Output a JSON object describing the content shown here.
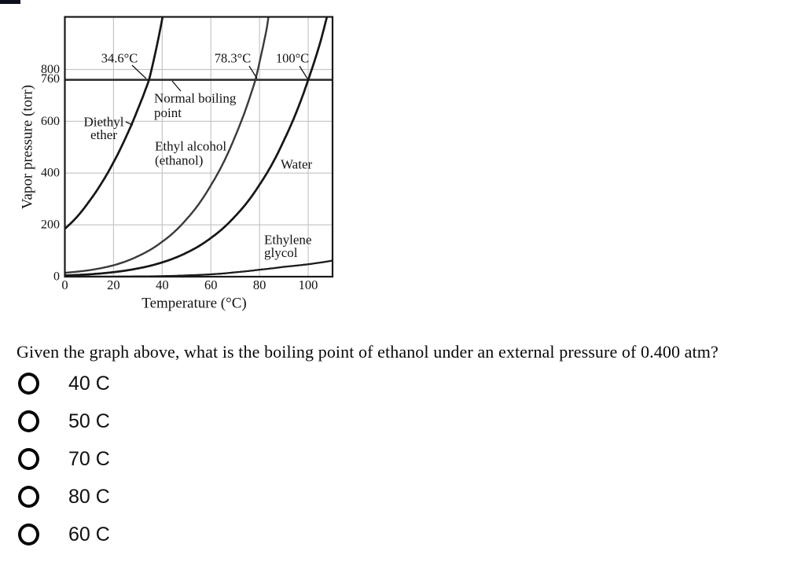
{
  "accent_bar": {
    "color": "#0b0e1c"
  },
  "question": {
    "text": "Given the graph above, what is the boiling point of ethanol under an external pressure of 0.400 atm?"
  },
  "options": [
    {
      "label": "40 C"
    },
    {
      "label": "50 C"
    },
    {
      "label": "70 C"
    },
    {
      "label": "80 C"
    },
    {
      "label": "60 C"
    }
  ],
  "chart_data": {
    "type": "line",
    "xlabel": "Temperature (°C)",
    "ylabel": "Vapor pressure (torr)",
    "xlim": [
      0,
      110
    ],
    "ylim": [
      0,
      1000
    ],
    "grid": true,
    "x_ticks": [
      0,
      20,
      40,
      60,
      80,
      100
    ],
    "y_ticks": [
      0,
      200,
      400,
      600,
      800
    ],
    "reference_line": {
      "value": 760,
      "label": "760"
    },
    "series": [
      {
        "name": "Diethyl ether",
        "boiling_point_label": "34.6°C",
        "color": "#161616",
        "width": 2.7,
        "points": [
          [
            0,
            185
          ],
          [
            5,
            231
          ],
          [
            10,
            291
          ],
          [
            15,
            360
          ],
          [
            20,
            442
          ],
          [
            25,
            537
          ],
          [
            30,
            647
          ],
          [
            34.6,
            760
          ],
          [
            38,
            900
          ],
          [
            40,
            995
          ],
          [
            41.2,
            1060
          ]
        ]
      },
      {
        "name": "Ethyl alcohol (ethanol)",
        "boiling_point_label": "78.3°C",
        "color": "#3a3a3a",
        "width": 2.4,
        "points": [
          [
            0,
            15
          ],
          [
            10,
            25
          ],
          [
            20,
            44
          ],
          [
            30,
            79
          ],
          [
            40,
            135
          ],
          [
            50,
            222
          ],
          [
            60,
            353
          ],
          [
            70,
            542
          ],
          [
            78.3,
            760
          ],
          [
            81,
            870
          ],
          [
            83,
            960
          ],
          [
            84.5,
            1060
          ]
        ]
      },
      {
        "name": "Water",
        "boiling_point_label": "100°C",
        "color": "#161616",
        "width": 2.7,
        "points": [
          [
            0,
            4.6
          ],
          [
            10,
            9.2
          ],
          [
            20,
            17.5
          ],
          [
            30,
            31.8
          ],
          [
            40,
            55.3
          ],
          [
            50,
            92.5
          ],
          [
            60,
            149.4
          ],
          [
            70,
            233.7
          ],
          [
            80,
            355.1
          ],
          [
            90,
            525.8
          ],
          [
            100,
            760
          ],
          [
            105,
            906
          ],
          [
            109.5,
            1075
          ]
        ]
      },
      {
        "name": "Ethylene glycol",
        "color": "#1c1c1c",
        "width": 2.3,
        "points": [
          [
            0,
            0.1
          ],
          [
            20,
            0.4
          ],
          [
            40,
            2
          ],
          [
            50,
            5
          ],
          [
            60,
            9
          ],
          [
            70,
            17
          ],
          [
            80,
            27
          ],
          [
            90,
            38
          ],
          [
            100,
            48
          ],
          [
            110,
            62
          ]
        ]
      }
    ],
    "annotations": [
      {
        "id": "ether-bp",
        "lines": [
          "34.6°C"
        ]
      },
      {
        "id": "ethanol-bp",
        "lines": [
          "78.3°C"
        ]
      },
      {
        "id": "water-bp",
        "lines": [
          "100°C"
        ]
      },
      {
        "id": "normal-boiling",
        "lines": [
          "Normal boiling",
          "point"
        ]
      },
      {
        "id": "diethyl-ether",
        "lines": [
          "Diethyl",
          "ether"
        ]
      },
      {
        "id": "ethyl-alcohol",
        "lines": [
          "Ethyl alcohol",
          "(ethanol)"
        ]
      },
      {
        "id": "water-label",
        "lines": [
          "Water"
        ]
      },
      {
        "id": "ethylene-glycol",
        "lines": [
          "Ethylene",
          "glycol"
        ]
      }
    ]
  }
}
